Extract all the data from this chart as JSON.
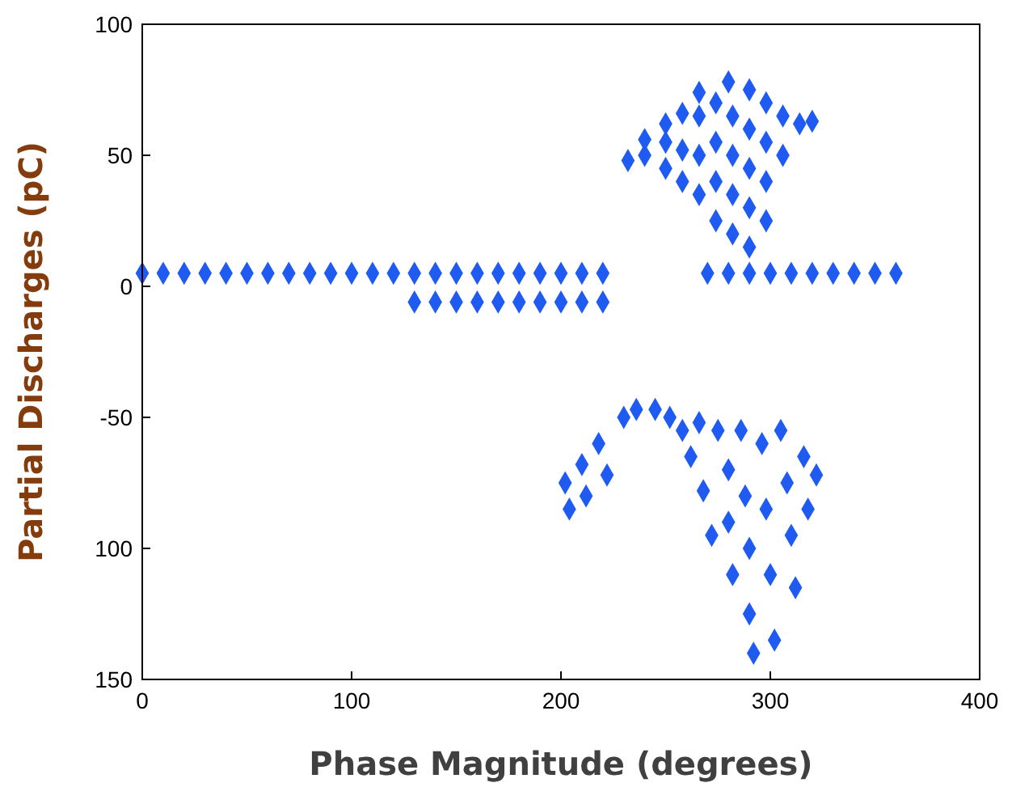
{
  "chart_data": {
    "type": "scatter",
    "xlabel": "Phase Magnitude (degrees)",
    "ylabel": "Partial Discharges (pC)",
    "xlim": [
      0,
      400
    ],
    "xticks": [
      0,
      100,
      200,
      300,
      400
    ],
    "ylim": [
      -150,
      100
    ],
    "yticks": [
      {
        "value": -150,
        "label": "150"
      },
      {
        "value": -100,
        "label": "100"
      },
      -50,
      0,
      50,
      100
    ],
    "marker": "diamond",
    "series": [
      {
        "color": "#1f5bf0",
        "x": [
          0,
          10,
          20,
          30,
          40,
          50,
          60,
          70,
          80,
          90,
          100,
          110,
          120,
          130,
          140,
          150,
          160,
          170,
          180,
          190,
          200,
          210,
          220,
          130,
          140,
          150,
          160,
          170,
          180,
          190,
          200,
          210,
          220,
          270,
          280,
          290,
          300,
          310,
          320,
          330,
          340,
          350,
          360,
          232,
          240,
          240,
          250,
          250,
          250,
          258,
          258,
          258,
          266,
          266,
          266,
          266,
          274,
          274,
          274,
          274,
          280,
          282,
          282,
          282,
          282,
          290,
          290,
          290,
          290,
          290,
          298,
          298,
          298,
          298,
          306,
          306,
          314,
          320,
          202,
          204,
          210,
          212,
          218,
          222,
          230,
          236,
          245,
          252,
          258,
          262,
          266,
          268,
          272,
          275,
          280,
          280,
          282,
          286,
          288,
          290,
          290,
          292,
          296,
          298,
          300,
          302,
          305,
          308,
          310,
          312,
          316,
          318,
          322
        ],
        "values": [
          5,
          5,
          5,
          5,
          5,
          5,
          5,
          5,
          5,
          5,
          5,
          5,
          5,
          5,
          5,
          5,
          5,
          5,
          5,
          5,
          5,
          5,
          5,
          -6,
          -6,
          -6,
          -6,
          -6,
          -6,
          -6,
          -6,
          -6,
          -6,
          5,
          5,
          5,
          5,
          5,
          5,
          5,
          5,
          5,
          5,
          48,
          50,
          56,
          45,
          55,
          62,
          40,
          52,
          66,
          35,
          50,
          65,
          74,
          25,
          40,
          55,
          70,
          78,
          20,
          35,
          50,
          65,
          15,
          30,
          45,
          60,
          75,
          25,
          40,
          55,
          70,
          50,
          65,
          62,
          63,
          -75,
          -85,
          -68,
          -80,
          -60,
          -72,
          -50,
          -47,
          -47,
          -50,
          -55,
          -65,
          -52,
          -78,
          -95,
          -55,
          -70,
          -90,
          -110,
          -55,
          -80,
          -100,
          -125,
          -140,
          -60,
          -85,
          -110,
          -135,
          -55,
          -75,
          -95,
          -115,
          -65,
          -85,
          -72
        ]
      }
    ]
  }
}
